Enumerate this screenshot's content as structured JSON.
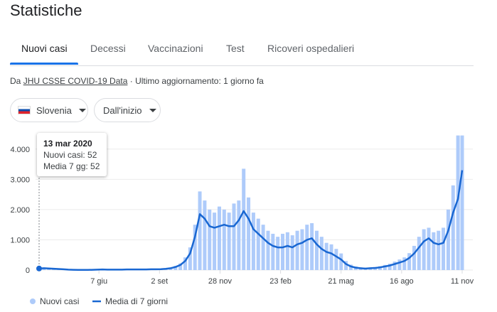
{
  "header": {
    "title": "Statistiche"
  },
  "tabs": [
    "Nuovi casi",
    "Decessi",
    "Vaccinazioni",
    "Test",
    "Ricoveri ospedalieri"
  ],
  "source": {
    "prefix": "Da",
    "link": "JHU CSSE COVID-19 Data",
    "updated": "· Ultimo aggiornamento: 1 giorno fa"
  },
  "filters": {
    "region": "Slovenia",
    "period": "Dall'inizio"
  },
  "tooltip": {
    "date": "13 mar 2020",
    "cases": "Nuovi casi: 52",
    "average": "Media 7 gg: 52"
  },
  "chart_data": {
    "type": "bar-line",
    "x": [
      0,
      7,
      14,
      21,
      28,
      35,
      42,
      49,
      56,
      63,
      70,
      77,
      84,
      91,
      98,
      105,
      112,
      119,
      126,
      133,
      140,
      147,
      154,
      161,
      168,
      175,
      182,
      189,
      196,
      203,
      210,
      217,
      224,
      231,
      238,
      245,
      252,
      259,
      266,
      273,
      280,
      287,
      294,
      301,
      308,
      315,
      322,
      329,
      336,
      343,
      350,
      357,
      364,
      371,
      378,
      385,
      392,
      399,
      406,
      413,
      420,
      427,
      434,
      441,
      448,
      455,
      462,
      469,
      476,
      483,
      490,
      497,
      504,
      511,
      518,
      525,
      532,
      539,
      546,
      553,
      560,
      567,
      574,
      581,
      588,
      595,
      602,
      608
    ],
    "series": [
      {
        "name": "Nuovi casi",
        "color": "#aecbfa",
        "values": [
          52,
          80,
          70,
          60,
          45,
          30,
          20,
          15,
          8,
          6,
          8,
          15,
          20,
          30,
          20,
          22,
          18,
          20,
          28,
          25,
          30,
          26,
          28,
          35,
          30,
          40,
          55,
          80,
          140,
          220,
          420,
          750,
          1500,
          2600,
          2300,
          2000,
          1900,
          2100,
          2000,
          1900,
          2200,
          2300,
          3350,
          2400,
          1900,
          1700,
          1500,
          1300,
          1200,
          1100,
          1200,
          1250,
          1150,
          1300,
          1350,
          1500,
          1550,
          1300,
          1100,
          900,
          850,
          700,
          550,
          300,
          180,
          120,
          90,
          70,
          85,
          100,
          130,
          170,
          210,
          280,
          350,
          420,
          560,
          800,
          1100,
          1350,
          1400,
          1250,
          1300,
          1400,
          2000,
          2800,
          4450,
          4450
        ]
      },
      {
        "name": "Media di 7 giorni",
        "color": "#1967d2",
        "values": [
          52,
          60,
          55,
          45,
          35,
          25,
          15,
          10,
          5,
          5,
          5,
          10,
          15,
          20,
          15,
          15,
          15,
          15,
          20,
          20,
          20,
          20,
          20,
          25,
          25,
          30,
          40,
          60,
          100,
          170,
          300,
          550,
          1100,
          1850,
          1700,
          1450,
          1400,
          1450,
          1500,
          1450,
          1450,
          1650,
          1950,
          1700,
          1350,
          1200,
          1050,
          900,
          800,
          750,
          750,
          800,
          750,
          850,
          900,
          1000,
          1050,
          850,
          700,
          600,
          550,
          450,
          350,
          200,
          120,
          80,
          60,
          50,
          60,
          70,
          90,
          120,
          150,
          200,
          250,
          300,
          400,
          550,
          750,
          950,
          1050,
          900,
          850,
          900,
          1300,
          1900,
          2350,
          3300
        ]
      }
    ],
    "xlim": [
      0,
      608
    ],
    "xticks": [
      {
        "value": 86,
        "label": "7 giu"
      },
      {
        "value": 173,
        "label": "2 set"
      },
      {
        "value": 260,
        "label": "28 nov"
      },
      {
        "value": 347,
        "label": "23 feb"
      },
      {
        "value": 434,
        "label": "21 mag"
      },
      {
        "value": 521,
        "label": "16 ago"
      },
      {
        "value": 608,
        "label": "11 nov"
      }
    ],
    "ylim": [
      0,
      4300
    ],
    "yticks": [
      0,
      {
        "value": 1000,
        "label": "1.000"
      },
      {
        "value": 2000,
        "label": "2.000"
      },
      {
        "value": 3000,
        "label": "3.000"
      },
      {
        "value": 4000,
        "label": "4.000"
      }
    ],
    "grid": true
  }
}
